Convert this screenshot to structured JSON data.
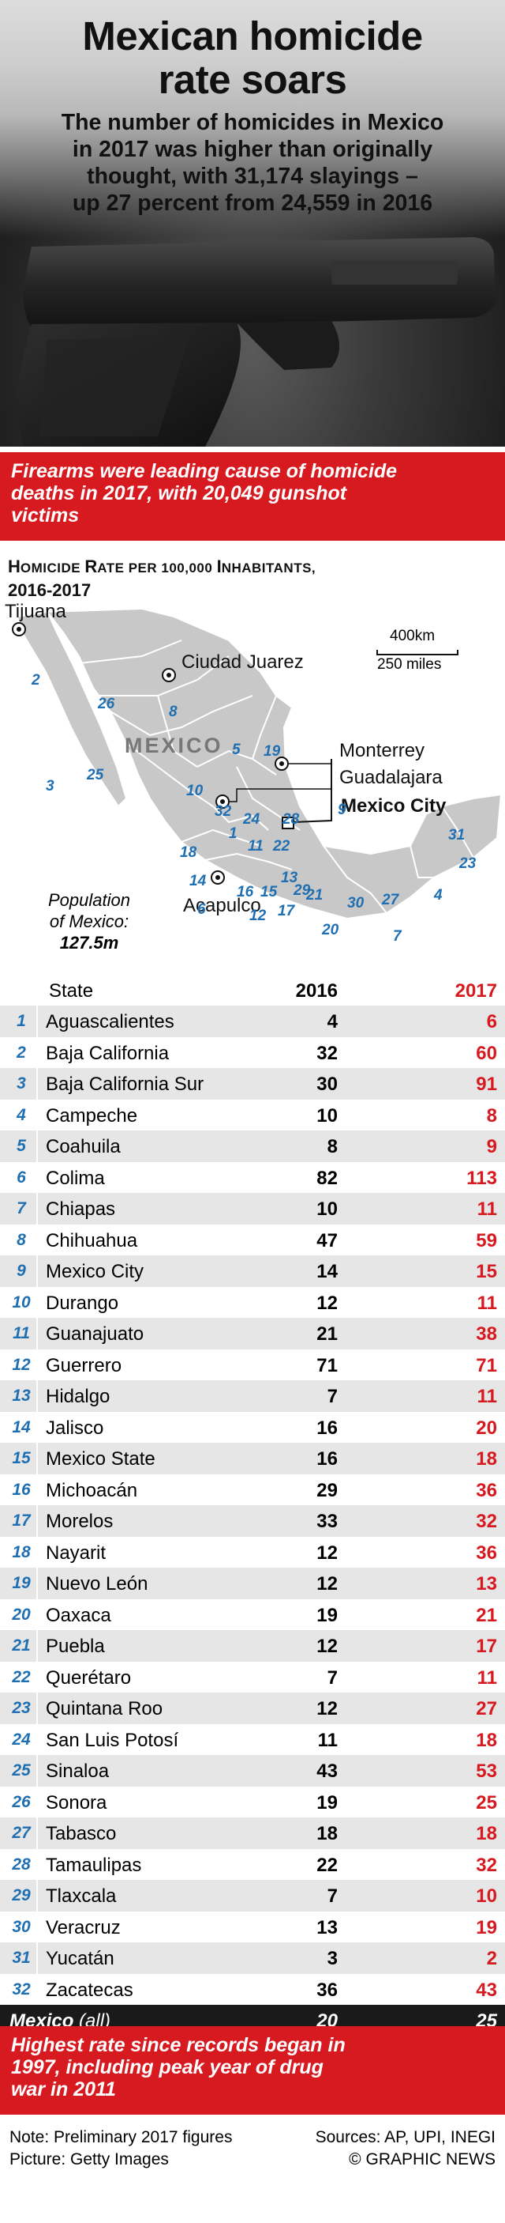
{
  "header": {
    "title_line1": "Mexican homicide",
    "title_line2": "rate soars",
    "subtitle_line1": "The number of homicides in Mexico",
    "subtitle_line2": "in 2017 was higher than originally",
    "subtitle_line3": "thought, with 31,174 slayings –",
    "subtitle_line4": "up 27 percent from 24,559 in 2016"
  },
  "banner_top": {
    "line1": "Firearms were leading cause  of homicide",
    "line2": "deaths in 2017, with 20,049 gunshot",
    "line3": "victims"
  },
  "section": {
    "heading_a": "H",
    "heading_b": "OMICIDE ",
    "heading_c": "R",
    "heading_d": "ATE PER 100,000 ",
    "heading_e": "I",
    "heading_f": "NHABITANTS,",
    "heading_line2": "2016-2017"
  },
  "map": {
    "country_label": "MEXICO",
    "scale_km": "400km",
    "scale_miles": "250 miles",
    "cities": {
      "tijuana": "Tijuana",
      "ciudad_juarez": "Ciudad Juarez",
      "monterrey": "Monterrey",
      "guadalajara": "Guadalajara",
      "mexico_city": "Mexico City",
      "acapulco": "Acapulco"
    },
    "population_label_line1": "Population",
    "population_label_line2": "of Mexico:",
    "population_value": "127.5m",
    "state_numbers": [
      "1",
      "2",
      "3",
      "4",
      "5",
      "6",
      "7",
      "8",
      "9",
      "10",
      "11",
      "12",
      "13",
      "14",
      "15",
      "16",
      "17",
      "18",
      "19",
      "20",
      "21",
      "22",
      "23",
      "24",
      "25",
      "26",
      "27",
      "28",
      "29",
      "30",
      "31",
      "32"
    ],
    "colors": {
      "land": "#c8c8c8",
      "border": "#ffffff",
      "number": "#1f6fb2"
    }
  },
  "table": {
    "col_state": "State",
    "col_2016": "2016",
    "col_2017": "2017",
    "total": {
      "name": "Mexico",
      "qualifier": "(all)",
      "v2016": "20",
      "v2017": "25"
    }
  },
  "chart_data": {
    "type": "table",
    "title": "Homicide Rate per 100,000 Inhabitants, 2016-2017",
    "columns": [
      "State",
      "2016",
      "2017"
    ],
    "rows": [
      {
        "idx": "1",
        "state": "Aguascalientes",
        "v2016": "4",
        "v2017": "6"
      },
      {
        "idx": "2",
        "state": "Baja California",
        "v2016": "32",
        "v2017": "60"
      },
      {
        "idx": "3",
        "state": "Baja California Sur",
        "v2016": "30",
        "v2017": "91"
      },
      {
        "idx": "4",
        "state": "Campeche",
        "v2016": "10",
        "v2017": "8"
      },
      {
        "idx": "5",
        "state": "Coahuila",
        "v2016": "8",
        "v2017": "9"
      },
      {
        "idx": "6",
        "state": "Colima",
        "v2016": "82",
        "v2017": "113"
      },
      {
        "idx": "7",
        "state": "Chiapas",
        "v2016": "10",
        "v2017": "11"
      },
      {
        "idx": "8",
        "state": "Chihuahua",
        "v2016": "47",
        "v2017": "59"
      },
      {
        "idx": "9",
        "state": "Mexico City",
        "v2016": "14",
        "v2017": "15"
      },
      {
        "idx": "10",
        "state": "Durango",
        "v2016": "12",
        "v2017": "11"
      },
      {
        "idx": "11",
        "state": "Guanajuato",
        "v2016": "21",
        "v2017": "38"
      },
      {
        "idx": "12",
        "state": "Guerrero",
        "v2016": "71",
        "v2017": "71"
      },
      {
        "idx": "13",
        "state": "Hidalgo",
        "v2016": "7",
        "v2017": "11"
      },
      {
        "idx": "14",
        "state": "Jalisco",
        "v2016": "16",
        "v2017": "20"
      },
      {
        "idx": "15",
        "state": "Mexico State",
        "v2016": "16",
        "v2017": "18"
      },
      {
        "idx": "16",
        "state": "Michoacán",
        "v2016": "29",
        "v2017": "36"
      },
      {
        "idx": "17",
        "state": "Morelos",
        "v2016": "33",
        "v2017": "32"
      },
      {
        "idx": "18",
        "state": "Nayarit",
        "v2016": "12",
        "v2017": "36"
      },
      {
        "idx": "19",
        "state": "Nuevo León",
        "v2016": "12",
        "v2017": "13"
      },
      {
        "idx": "20",
        "state": "Oaxaca",
        "v2016": "19",
        "v2017": "21"
      },
      {
        "idx": "21",
        "state": "Puebla",
        "v2016": "12",
        "v2017": "17"
      },
      {
        "idx": "22",
        "state": "Querétaro",
        "v2016": "7",
        "v2017": "11"
      },
      {
        "idx": "23",
        "state": "Quintana Roo",
        "v2016": "12",
        "v2017": "27"
      },
      {
        "idx": "24",
        "state": "San Luis Potosí",
        "v2016": "11",
        "v2017": "18"
      },
      {
        "idx": "25",
        "state": "Sinaloa",
        "v2016": "43",
        "v2017": "53"
      },
      {
        "idx": "26",
        "state": "Sonora",
        "v2016": "19",
        "v2017": "25"
      },
      {
        "idx": "27",
        "state": "Tabasco",
        "v2016": "18",
        "v2017": "18"
      },
      {
        "idx": "28",
        "state": "Tamaulipas",
        "v2016": "22",
        "v2017": "32"
      },
      {
        "idx": "29",
        "state": "Tlaxcala",
        "v2016": "7",
        "v2017": "10"
      },
      {
        "idx": "30",
        "state": "Veracruz",
        "v2016": "13",
        "v2017": "19"
      },
      {
        "idx": "31",
        "state": "Yucatán",
        "v2016": "3",
        "v2017": "2"
      },
      {
        "idx": "32",
        "state": "Zacatecas",
        "v2016": "36",
        "v2017": "43"
      }
    ],
    "colors": {
      "col2017": "#d71920",
      "index": "#1f6fb2",
      "stripe": "#e6e6e6"
    }
  },
  "banner_bottom": {
    "line1": "Highest rate since records began in",
    "line2": "1997, including peak year of drug",
    "line3": "war in 2011"
  },
  "footer": {
    "note": "Note: Preliminary 2017 figures",
    "picture": "Picture: Getty Images",
    "sources": "Sources: AP, UPI, INEGI",
    "credit": "© GRAPHIC NEWS"
  },
  "colors": {
    "accent_red": "#d71920",
    "dark": "#1a1a1a"
  }
}
